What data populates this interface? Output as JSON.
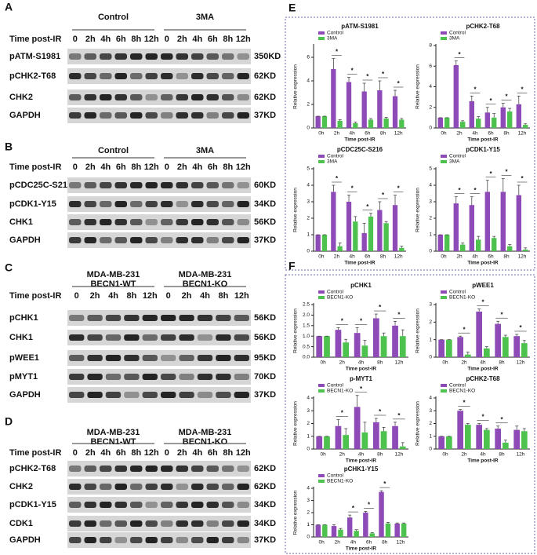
{
  "blots": [
    {
      "label": "A",
      "groups": [
        [
          "Control"
        ],
        [
          "3MA"
        ]
      ],
      "time_label": "Time post-IR",
      "times": [
        "0",
        "2h",
        "4h",
        "6h",
        "8h",
        "12h",
        "0",
        "2h",
        "4h",
        "6h",
        "8h",
        "12h"
      ],
      "rows": [
        {
          "name": "pATM-S1981",
          "size": "350KD"
        },
        {
          "name": "pCHK2-T68",
          "size": "62KD"
        },
        {
          "name": "CHK2",
          "size": "62KD"
        },
        {
          "name": "GAPDH",
          "size": "37KD"
        }
      ]
    },
    {
      "label": "B",
      "groups": [
        [
          "Control"
        ],
        [
          "3MA"
        ]
      ],
      "time_label": "Time post-IR",
      "times": [
        "0",
        "2h",
        "4h",
        "6h",
        "8h",
        "12h",
        "0",
        "2h",
        "4h",
        "6h",
        "8h",
        "12h"
      ],
      "rows": [
        {
          "name": "pCDC25C-S216",
          "size": "60KD"
        },
        {
          "name": "pCDK1-Y15",
          "size": "34KD"
        },
        {
          "name": "CHK1",
          "size": "56KD"
        },
        {
          "name": "GAPDH",
          "size": "37KD"
        }
      ]
    },
    {
      "label": "C",
      "groups": [
        [
          "MDA-MB-231",
          "BECN1-WT"
        ],
        [
          "MDA-MB-231",
          "BECN1-KO"
        ]
      ],
      "time_label": "Time post-IR",
      "times": [
        "0",
        "2h",
        "4h",
        "8h",
        "12h",
        "0",
        "2h",
        "4h",
        "8h",
        "12h"
      ],
      "rows": [
        {
          "name": "pCHK1",
          "size": "56KD"
        },
        {
          "name": "CHK1",
          "size": "56KD"
        },
        {
          "name": "pWEE1",
          "size": "95KD"
        },
        {
          "name": "pMYT1",
          "size": "70KD"
        },
        {
          "name": "GAPDH",
          "size": "37KD"
        }
      ]
    },
    {
      "label": "D",
      "groups": [
        [
          "MDA-MB-231",
          "BECN1-WT"
        ],
        [
          "MDA-MB-231",
          "BECN1-KO"
        ]
      ],
      "time_label": "Time post-IR",
      "times": [
        "0",
        "2h",
        "4h",
        "6h",
        "8h",
        "12h",
        "0",
        "2h",
        "4h",
        "6h",
        "8h",
        "12h"
      ],
      "rows": [
        {
          "name": "pCHK2-T68",
          "size": "62KD"
        },
        {
          "name": "CHK2",
          "size": "62KD"
        },
        {
          "name": "pCDK1-Y15",
          "size": "34KD"
        },
        {
          "name": "CDK1",
          "size": "34KD"
        },
        {
          "name": "GAPDH",
          "size": "37KD"
        }
      ]
    }
  ],
  "chart_panel_labels": [
    "E",
    "F"
  ],
  "chart_data": [
    {
      "type": "bar",
      "title": "pATM-S1981",
      "xlabel": "Time post-IR",
      "ylabel": "Relative expression",
      "categories": [
        "0h",
        "2h",
        "4h",
        "6h",
        "8h",
        "12h"
      ],
      "ylim": [
        0,
        7
      ],
      "yticks": [
        0,
        2,
        4,
        6
      ],
      "series": [
        {
          "name": "Control",
          "color": "#8e4bb8",
          "values": [
            1,
            5,
            3.9,
            3.1,
            3.2,
            2.7
          ],
          "errors": [
            0,
            0.9,
            0.4,
            0.7,
            0.8,
            0.5
          ]
        },
        {
          "name": "3MA",
          "color": "#4ec24e",
          "values": [
            1,
            0.6,
            0.4,
            0.7,
            0.8,
            0.7
          ],
          "errors": [
            0,
            0.1,
            0.1,
            0.1,
            0.1,
            0.1
          ]
        }
      ],
      "significance": [
        null,
        "*",
        "*",
        "*",
        "*",
        "*"
      ]
    },
    {
      "type": "bar",
      "title": "pCHK2-T68",
      "xlabel": "Time post-IR",
      "ylabel": "Relative expression",
      "categories": [
        "0h",
        "2h",
        "4h",
        "6h",
        "8h",
        "12h"
      ],
      "ylim": [
        0,
        8
      ],
      "yticks": [
        0,
        2,
        4,
        6,
        8
      ],
      "series": [
        {
          "name": "Control",
          "color": "#8e4bb8",
          "values": [
            1,
            6.1,
            2.6,
            1.5,
            2.0,
            2.3
          ],
          "errors": [
            0,
            0.4,
            0.5,
            0.5,
            0.4,
            0.8
          ]
        },
        {
          "name": "3MA",
          "color": "#4ec24e",
          "values": [
            1,
            0.6,
            0.9,
            1.0,
            1.6,
            0.3
          ],
          "errors": [
            0,
            0.1,
            0.2,
            0.4,
            0.3,
            0.1
          ]
        }
      ],
      "significance": [
        null,
        "*",
        "*",
        "*",
        "*",
        "*"
      ]
    },
    {
      "type": "bar",
      "title": "pCDC25C-S216",
      "xlabel": "Time post-IR",
      "ylabel": "Relative expression",
      "categories": [
        "0h",
        "2h",
        "4h",
        "6h",
        "8h",
        "12h"
      ],
      "ylim": [
        0,
        5
      ],
      "yticks": [
        0,
        1,
        2,
        3,
        4,
        5
      ],
      "series": [
        {
          "name": "Control",
          "color": "#8e4bb8",
          "values": [
            1,
            3.6,
            3.0,
            1.1,
            2.5,
            2.8
          ],
          "errors": [
            0,
            0.4,
            0.4,
            0.6,
            0.5,
            0.6
          ]
        },
        {
          "name": "3MA",
          "color": "#4ec24e",
          "values": [
            1,
            0.3,
            1.8,
            2.1,
            1.7,
            0.2
          ],
          "errors": [
            0,
            0.2,
            0.3,
            0.2,
            0.1,
            0.1
          ]
        }
      ],
      "significance": [
        null,
        "*",
        "*",
        "*",
        "*",
        "*"
      ]
    },
    {
      "type": "bar",
      "title": "pCDK1-Y15",
      "xlabel": "Time post-IR",
      "ylabel": "Relative expression",
      "categories": [
        "0h",
        "2h",
        "4h",
        "6h",
        "8h",
        "12h"
      ],
      "ylim": [
        0,
        5
      ],
      "yticks": [
        0,
        1,
        2,
        3,
        4,
        5
      ],
      "series": [
        {
          "name": "Control",
          "color": "#8e4bb8",
          "values": [
            1,
            2.9,
            2.8,
            3.6,
            3.6,
            3.4
          ],
          "errors": [
            0,
            0.4,
            0.5,
            0.7,
            0.8,
            0.6
          ]
        },
        {
          "name": "3MA",
          "color": "#4ec24e",
          "values": [
            1,
            0.4,
            0.7,
            0.8,
            0.3,
            0.1
          ],
          "errors": [
            0,
            0.1,
            0.2,
            0.1,
            0.1,
            0.1
          ]
        }
      ],
      "significance": [
        null,
        "*",
        "*",
        "*",
        "*",
        "*"
      ]
    },
    {
      "type": "bar",
      "title": "pCHK1",
      "xlabel": "Time post-IR",
      "ylabel": "Relative expression",
      "categories": [
        "0h",
        "2h",
        "4h",
        "8h",
        "12h"
      ],
      "ylim": [
        0,
        2.5
      ],
      "yticks": [
        {
          "value": 0,
          "label": "0.0"
        },
        {
          "value": 0.5,
          "label": "0.5"
        },
        {
          "value": 1,
          "label": "1.0"
        },
        {
          "value": 1.5,
          "label": "1.5"
        },
        {
          "value": 2,
          "label": "2.0"
        },
        {
          "value": 2.5,
          "label": "2.5"
        }
      ],
      "series": [
        {
          "name": "Control",
          "color": "#8e4bb8",
          "values": [
            1,
            1.3,
            1.15,
            1.85,
            1.5
          ],
          "errors": [
            0,
            0.1,
            0.25,
            0.2,
            0.2
          ]
        },
        {
          "name": "BECN1-KO",
          "color": "#4ec24e",
          "values": [
            1,
            0.7,
            0.55,
            1.0,
            1.0
          ],
          "errors": [
            0,
            0.15,
            0.25,
            0.15,
            0.3
          ]
        }
      ],
      "significance": [
        null,
        "*",
        "*",
        "*",
        "*"
      ]
    },
    {
      "type": "bar",
      "title": "pWEE1",
      "xlabel": "Time post-IR",
      "ylabel": "Relative expression",
      "categories": [
        "0h",
        "2h",
        "4h",
        "8h",
        "12h"
      ],
      "ylim": [
        0,
        3
      ],
      "yticks": [
        0,
        1,
        2,
        3
      ],
      "series": [
        {
          "name": "Control",
          "color": "#8e4bb8",
          "values": [
            1,
            1.15,
            2.6,
            1.9,
            1.2
          ],
          "errors": [
            0,
            0.05,
            0.15,
            0.15,
            0.1
          ]
        },
        {
          "name": "BECN1-KO",
          "color": "#4ec24e",
          "values": [
            1,
            0.15,
            0.5,
            1.15,
            0.8
          ],
          "errors": [
            0,
            0.15,
            0.1,
            0.1,
            0.15
          ]
        }
      ],
      "significance": [
        null,
        "*",
        "*",
        "*",
        "*"
      ]
    },
    {
      "type": "bar",
      "title": "p-MYT1",
      "xlabel": "Time post-IR",
      "ylabel": "Relative expression",
      "categories": [
        "0h",
        "2h",
        "4h",
        "8h",
        "12h"
      ],
      "ylim": [
        0,
        4
      ],
      "yticks": [
        0,
        1,
        2,
        3,
        4
      ],
      "series": [
        {
          "name": "Control",
          "color": "#8e4bb8",
          "values": [
            1,
            1.8,
            3.3,
            2.1,
            1.8
          ],
          "errors": [
            0,
            0.5,
            0.9,
            0.3,
            0.3
          ]
        },
        {
          "name": "BECN1-KO",
          "color": "#4ec24e",
          "values": [
            1,
            1.1,
            1.3,
            1.4,
            0.2
          ],
          "errors": [
            0,
            0.5,
            0.8,
            0.3,
            0.3
          ]
        }
      ],
      "significance": [
        null,
        "*",
        "*",
        "*",
        "*"
      ]
    },
    {
      "type": "bar",
      "title": "pCHK2-T68",
      "xlabel": "Time post-IR",
      "ylabel": "Relative expression",
      "categories": [
        "0h",
        "2h",
        "4h",
        "8h",
        "12h"
      ],
      "ylim": [
        0,
        4
      ],
      "yticks": [
        0,
        1,
        2,
        3,
        4
      ],
      "series": [
        {
          "name": "Control",
          "color": "#8e4bb8",
          "values": [
            1,
            3.0,
            1.9,
            1.6,
            1.5
          ],
          "errors": [
            0,
            0.1,
            0.1,
            0.2,
            0.3
          ]
        },
        {
          "name": "BECN1-KO",
          "color": "#4ec24e",
          "values": [
            1,
            1.9,
            1.5,
            0.5,
            1.4
          ],
          "errors": [
            0,
            0.1,
            0.1,
            0.2,
            0.2
          ]
        }
      ],
      "significance": [
        null,
        "*",
        "*",
        "*",
        null
      ]
    },
    {
      "type": "bar",
      "title": "pCHK1-Y15",
      "xlabel": "Time post-IR",
      "ylabel": "Relative expression",
      "categories": [
        "0h",
        "2h",
        "4h",
        "6h",
        "8h",
        "12h"
      ],
      "ylim": [
        0,
        4
      ],
      "yticks": [
        0,
        1,
        2,
        3,
        4
      ],
      "series": [
        {
          "name": "Control",
          "color": "#8e4bb8",
          "values": [
            1,
            0.9,
            1.6,
            2.0,
            3.7,
            1.1
          ],
          "errors": [
            0,
            0.1,
            0.2,
            0.1,
            0.1,
            0.05
          ]
        },
        {
          "name": "BECN1-KO",
          "color": "#4ec24e",
          "values": [
            1,
            0.6,
            0.5,
            0.3,
            1.1,
            1.1
          ],
          "errors": [
            0,
            0.1,
            0.1,
            0.05,
            0.1,
            0.05
          ]
        }
      ],
      "significance": [
        null,
        null,
        "*",
        "*",
        "*",
        null
      ]
    }
  ]
}
